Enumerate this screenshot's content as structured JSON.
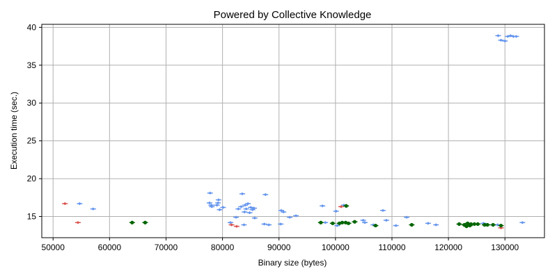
{
  "chart_data": {
    "type": "scatter",
    "title": "Powered by Collective Knowledge",
    "xlabel": "Binary size (bytes)",
    "ylabel": "Execution time (sec.)",
    "xlim": [
      48000,
      137000
    ],
    "ylim": [
      12.2,
      40.4
    ],
    "xticks": [
      50000,
      60000,
      70000,
      80000,
      90000,
      100000,
      110000,
      120000,
      130000
    ],
    "yticks": [
      15,
      20,
      25,
      30,
      35,
      40
    ],
    "grid": true,
    "colors": {
      "blue": "#6495ed",
      "red": "#d9534f",
      "green": "#006400"
    },
    "series": [
      {
        "color_key": "blue",
        "points": [
          [
            54700,
            16.7
          ],
          [
            57100,
            16.0
          ],
          [
            77800,
            18.1
          ],
          [
            77700,
            16.8
          ],
          [
            78000,
            16.5
          ],
          [
            78100,
            16.3
          ],
          [
            79300,
            17.2
          ],
          [
            79200,
            16.8
          ],
          [
            79000,
            16.5
          ],
          [
            79500,
            15.9
          ],
          [
            80100,
            16.2
          ],
          [
            82800,
            16.0
          ],
          [
            83300,
            16.3
          ],
          [
            83500,
            18.0
          ],
          [
            84000,
            16.5
          ],
          [
            84200,
            16.0
          ],
          [
            84500,
            16.7
          ],
          [
            85000,
            16.2
          ],
          [
            85300,
            15.9
          ],
          [
            85600,
            16.1
          ],
          [
            84800,
            15.5
          ],
          [
            83900,
            15.6
          ],
          [
            87600,
            17.9
          ],
          [
            90400,
            15.8
          ],
          [
            90800,
            15.6
          ],
          [
            93000,
            15.1
          ],
          [
            91900,
            14.9
          ],
          [
            85700,
            14.8
          ],
          [
            82400,
            14.9
          ],
          [
            81400,
            14.2
          ],
          [
            83800,
            13.9
          ],
          [
            87400,
            14.0
          ],
          [
            88200,
            13.9
          ],
          [
            90300,
            14.0
          ],
          [
            97700,
            16.4
          ],
          [
            100100,
            15.7
          ],
          [
            101500,
            16.5
          ],
          [
            98200,
            14.2
          ],
          [
            100300,
            13.8
          ],
          [
            104900,
            14.5
          ],
          [
            105200,
            14.2
          ],
          [
            106700,
            13.9
          ],
          [
            108400,
            15.8
          ],
          [
            109000,
            14.5
          ],
          [
            110700,
            13.8
          ],
          [
            112600,
            14.9
          ],
          [
            116400,
            14.1
          ],
          [
            117800,
            13.9
          ],
          [
            126200,
            14.1
          ],
          [
            128700,
            13.9
          ],
          [
            133100,
            14.2
          ],
          [
            128800,
            38.9
          ],
          [
            129300,
            38.3
          ],
          [
            130000,
            38.2
          ],
          [
            131000,
            38.9
          ],
          [
            131500,
            38.8
          ],
          [
            132000,
            38.8
          ],
          [
            130500,
            38.8
          ]
        ]
      },
      {
        "color_key": "red",
        "points": [
          [
            52100,
            16.7
          ],
          [
            54400,
            14.2
          ],
          [
            81600,
            13.9
          ],
          [
            82500,
            13.7
          ],
          [
            101000,
            16.3
          ],
          [
            129300,
            13.5
          ],
          [
            124000,
            14.0
          ]
        ]
      },
      {
        "color_key": "green",
        "points": [
          [
            64000,
            14.2
          ],
          [
            66300,
            14.2
          ],
          [
            97400,
            14.2
          ],
          [
            99500,
            14.1
          ],
          [
            100700,
            14.1
          ],
          [
            101200,
            14.2
          ],
          [
            101800,
            14.2
          ],
          [
            102300,
            14.1
          ],
          [
            103400,
            14.3
          ],
          [
            101900,
            16.4
          ],
          [
            107100,
            13.8
          ],
          [
            113500,
            13.9
          ],
          [
            121900,
            14.0
          ],
          [
            122800,
            13.9
          ],
          [
            123400,
            14.1
          ],
          [
            124000,
            14.0
          ],
          [
            124600,
            14.0
          ],
          [
            125200,
            14.0
          ],
          [
            126400,
            13.9
          ],
          [
            126900,
            13.9
          ],
          [
            127900,
            13.9
          ],
          [
            129300,
            13.8
          ],
          [
            123200,
            13.7
          ],
          [
            123800,
            13.8
          ]
        ]
      }
    ]
  }
}
